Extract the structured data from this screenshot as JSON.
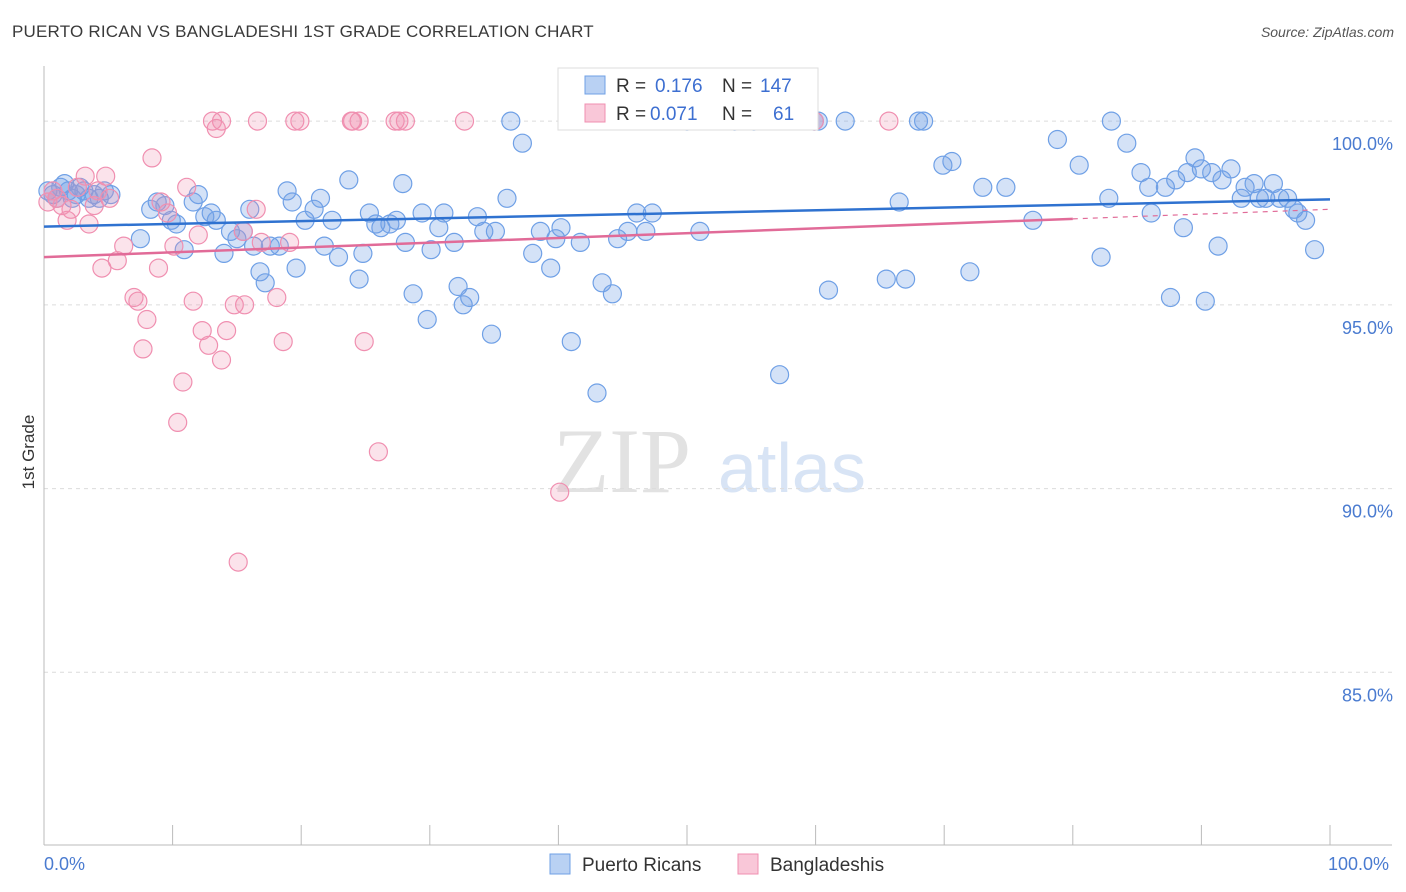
{
  "title": "PUERTO RICAN VS BANGLADESHI 1ST GRADE CORRELATION CHART",
  "source": "Source: ZipAtlas.com",
  "watermark": {
    "zip": "ZIP",
    "atlas": "atlas"
  },
  "chart_data": {
    "type": "scatter",
    "title": "PUERTO RICAN VS BANGLADESHI 1ST GRADE CORRELATION CHART",
    "xlabel": "",
    "ylabel": "1st Grade",
    "xlim": [
      0,
      100
    ],
    "ylim": [
      80.3,
      101.5
    ],
    "x_tick_labels": [
      "0.0%",
      "100.0%"
    ],
    "y_ticks": [
      100.0,
      95.0,
      90.0,
      85.0
    ],
    "y_tick_labels": [
      "100.0%",
      "95.0%",
      "90.0%",
      "85.0%"
    ],
    "grid": true,
    "legend_position": "top-center",
    "stats": [
      {
        "name": "Puerto Ricans",
        "r_label": "R =",
        "r": "0.176",
        "n_label": "N =",
        "n": "147",
        "color": "#6fa0e6"
      },
      {
        "name": "Bangladeshis",
        "r_label": "R =",
        "r": "0.071",
        "n_label": "N =",
        "n": "61",
        "color": "#f08fb0"
      }
    ],
    "series": [
      {
        "name": "Puerto Ricans",
        "color": "#6fa0e6",
        "line_color": "#2f72d0",
        "trend": {
          "x": [
            0,
            100
          ],
          "y": [
            97.13,
            97.87
          ]
        },
        "points": [
          [
            0.3,
            98.1
          ],
          [
            0.7,
            98.0
          ],
          [
            1.0,
            97.9
          ],
          [
            1.3,
            98.2
          ],
          [
            1.6,
            98.3
          ],
          [
            1.9,
            98.1
          ],
          [
            2.2,
            97.9
          ],
          [
            2.5,
            98.0
          ],
          [
            2.8,
            98.2
          ],
          [
            3.1,
            98.1
          ],
          [
            3.5,
            97.9
          ],
          [
            3.9,
            98.0
          ],
          [
            4.3,
            97.9
          ],
          [
            4.7,
            98.1
          ],
          [
            5.2,
            98.0
          ],
          [
            7.5,
            96.8
          ],
          [
            8.3,
            97.6
          ],
          [
            8.8,
            97.8
          ],
          [
            9.4,
            97.7
          ],
          [
            9.9,
            97.3
          ],
          [
            10.3,
            97.2
          ],
          [
            10.9,
            96.5
          ],
          [
            11.6,
            97.8
          ],
          [
            12.0,
            98.0
          ],
          [
            12.5,
            97.4
          ],
          [
            13.0,
            97.5
          ],
          [
            13.4,
            97.3
          ],
          [
            14.0,
            96.4
          ],
          [
            14.5,
            97.0
          ],
          [
            15.0,
            96.8
          ],
          [
            15.5,
            97.0
          ],
          [
            16.0,
            97.6
          ],
          [
            16.3,
            96.6
          ],
          [
            16.8,
            95.9
          ],
          [
            17.2,
            95.6
          ],
          [
            17.6,
            96.6
          ],
          [
            18.3,
            96.6
          ],
          [
            18.9,
            98.1
          ],
          [
            19.3,
            97.8
          ],
          [
            19.6,
            96.0
          ],
          [
            20.3,
            97.3
          ],
          [
            21.0,
            97.6
          ],
          [
            21.5,
            97.9
          ],
          [
            21.8,
            96.6
          ],
          [
            22.4,
            97.3
          ],
          [
            22.9,
            96.3
          ],
          [
            23.7,
            98.4
          ],
          [
            24.5,
            95.7
          ],
          [
            24.8,
            96.4
          ],
          [
            25.3,
            97.5
          ],
          [
            25.8,
            97.2
          ],
          [
            26.2,
            97.1
          ],
          [
            26.9,
            97.2
          ],
          [
            27.4,
            97.3
          ],
          [
            27.9,
            98.3
          ],
          [
            28.1,
            96.7
          ],
          [
            28.7,
            95.3
          ],
          [
            29.4,
            97.5
          ],
          [
            29.8,
            94.6
          ],
          [
            30.1,
            96.5
          ],
          [
            30.7,
            97.1
          ],
          [
            31.1,
            97.5
          ],
          [
            31.9,
            96.7
          ],
          [
            32.2,
            95.5
          ],
          [
            32.6,
            95.0
          ],
          [
            33.1,
            95.2
          ],
          [
            33.7,
            97.4
          ],
          [
            34.2,
            97.0
          ],
          [
            34.8,
            94.2
          ],
          [
            35.1,
            97.0
          ],
          [
            36.0,
            97.9
          ],
          [
            36.3,
            100.0
          ],
          [
            37.2,
            99.4
          ],
          [
            38.0,
            96.4
          ],
          [
            38.6,
            97.0
          ],
          [
            39.4,
            96.0
          ],
          [
            39.8,
            96.8
          ],
          [
            40.2,
            97.1
          ],
          [
            41.0,
            94.0
          ],
          [
            41.7,
            96.7
          ],
          [
            43.0,
            92.6
          ],
          [
            43.4,
            95.6
          ],
          [
            44.2,
            95.3
          ],
          [
            44.6,
            96.8
          ],
          [
            45.4,
            97.0
          ],
          [
            46.1,
            97.5
          ],
          [
            46.8,
            97.0
          ],
          [
            47.3,
            97.5
          ],
          [
            50.0,
            100.0
          ],
          [
            51.0,
            97.0
          ],
          [
            53.7,
            100.0
          ],
          [
            55.2,
            100.0
          ],
          [
            57.2,
            93.1
          ],
          [
            59.9,
            100.0
          ],
          [
            60.2,
            100.0
          ],
          [
            61.0,
            95.4
          ],
          [
            62.3,
            100.0
          ],
          [
            65.5,
            95.7
          ],
          [
            66.5,
            97.8
          ],
          [
            67.0,
            95.7
          ],
          [
            68.0,
            100.0
          ],
          [
            68.4,
            100.0
          ],
          [
            69.9,
            98.8
          ],
          [
            70.6,
            98.9
          ],
          [
            72.0,
            95.9
          ],
          [
            73.0,
            98.2
          ],
          [
            74.8,
            98.2
          ],
          [
            76.9,
            97.3
          ],
          [
            78.8,
            99.5
          ],
          [
            80.5,
            98.8
          ],
          [
            82.2,
            96.3
          ],
          [
            82.8,
            97.9
          ],
          [
            83.0,
            100.0
          ],
          [
            84.2,
            99.4
          ],
          [
            85.3,
            98.6
          ],
          [
            85.9,
            98.2
          ],
          [
            86.1,
            97.5
          ],
          [
            87.2,
            98.2
          ],
          [
            87.6,
            95.2
          ],
          [
            88.0,
            98.4
          ],
          [
            88.6,
            97.1
          ],
          [
            88.9,
            98.6
          ],
          [
            89.5,
            99.0
          ],
          [
            90.0,
            98.7
          ],
          [
            90.3,
            95.1
          ],
          [
            90.8,
            98.6
          ],
          [
            91.3,
            96.6
          ],
          [
            91.6,
            98.4
          ],
          [
            92.3,
            98.7
          ],
          [
            93.1,
            97.9
          ],
          [
            93.4,
            98.2
          ],
          [
            94.1,
            98.3
          ],
          [
            94.5,
            97.9
          ],
          [
            95.0,
            97.9
          ],
          [
            95.6,
            98.3
          ],
          [
            96.1,
            97.9
          ],
          [
            96.7,
            97.9
          ],
          [
            97.2,
            97.6
          ],
          [
            97.5,
            97.5
          ],
          [
            98.1,
            97.3
          ],
          [
            98.8,
            96.5
          ]
        ]
      },
      {
        "name": "Bangladeshis",
        "color": "#f08fb0",
        "line_color": "#e16b98",
        "trend": {
          "x": [
            0,
            100
          ],
          "y": [
            96.3,
            97.6
          ]
        },
        "points": [
          [
            0.3,
            97.8
          ],
          [
            0.7,
            98.1
          ],
          [
            1.0,
            97.9
          ],
          [
            1.4,
            97.7
          ],
          [
            1.8,
            97.3
          ],
          [
            2.1,
            97.6
          ],
          [
            2.6,
            98.2
          ],
          [
            3.2,
            98.5
          ],
          [
            3.5,
            97.2
          ],
          [
            3.9,
            97.7
          ],
          [
            4.2,
            98.1
          ],
          [
            4.8,
            98.5
          ],
          [
            5.1,
            97.9
          ],
          [
            4.5,
            96.0
          ],
          [
            5.7,
            96.2
          ],
          [
            6.2,
            96.6
          ],
          [
            7.0,
            95.2
          ],
          [
            7.3,
            95.1
          ],
          [
            7.7,
            93.8
          ],
          [
            8.0,
            94.6
          ],
          [
            8.4,
            99.0
          ],
          [
            8.9,
            96.0
          ],
          [
            9.1,
            97.8
          ],
          [
            9.6,
            97.5
          ],
          [
            10.1,
            96.6
          ],
          [
            10.4,
            91.8
          ],
          [
            10.8,
            92.9
          ],
          [
            11.1,
            98.2
          ],
          [
            11.6,
            95.1
          ],
          [
            12.0,
            96.9
          ],
          [
            12.3,
            94.3
          ],
          [
            12.8,
            93.9
          ],
          [
            13.1,
            100.0
          ],
          [
            13.4,
            99.8
          ],
          [
            13.8,
            93.5
          ],
          [
            14.2,
            94.3
          ],
          [
            14.8,
            95.0
          ],
          [
            15.1,
            88.0
          ],
          [
            15.5,
            97.0
          ],
          [
            15.6,
            95.0
          ],
          [
            16.5,
            97.6
          ],
          [
            16.9,
            96.7
          ],
          [
            18.1,
            95.2
          ],
          [
            18.6,
            94.0
          ],
          [
            19.1,
            96.7
          ],
          [
            19.5,
            100.0
          ],
          [
            23.9,
            100.0
          ],
          [
            24.0,
            100.0
          ],
          [
            24.5,
            100.0
          ],
          [
            24.9,
            94.0
          ],
          [
            26.0,
            91.0
          ],
          [
            27.3,
            100.0
          ],
          [
            27.6,
            100.0
          ],
          [
            28.1,
            100.0
          ],
          [
            32.7,
            100.0
          ],
          [
            40.1,
            89.9
          ],
          [
            59.9,
            100.0
          ],
          [
            65.7,
            100.0
          ],
          [
            16.6,
            100.0
          ],
          [
            19.9,
            100.0
          ],
          [
            13.8,
            100.0
          ]
        ]
      }
    ]
  }
}
